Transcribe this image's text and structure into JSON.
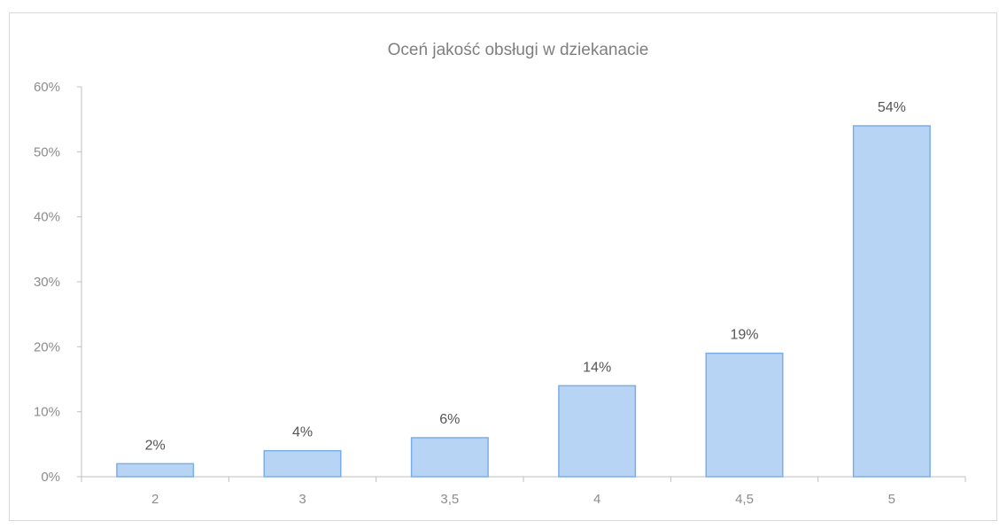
{
  "chart_data": {
    "type": "bar",
    "title": "Oceń jakość obsługi w dziekanacie",
    "xlabel": "",
    "ylabel": "",
    "categories": [
      "2",
      "3",
      "3,5",
      "4",
      "4,5",
      "5"
    ],
    "values": [
      2,
      4,
      6,
      14,
      19,
      54
    ],
    "data_labels": [
      "2%",
      "4%",
      "6%",
      "14%",
      "19%",
      "54%"
    ],
    "ylim": [
      0,
      60
    ],
    "yticks": [
      "0%",
      "10%",
      "20%",
      "30%",
      "40%",
      "50%",
      "60%"
    ],
    "grid": false,
    "legend": "none",
    "colors": {
      "bar_fill": "#b8d4f5",
      "bar_stroke": "#7aaee6",
      "axis": "#bfbfbf"
    }
  }
}
